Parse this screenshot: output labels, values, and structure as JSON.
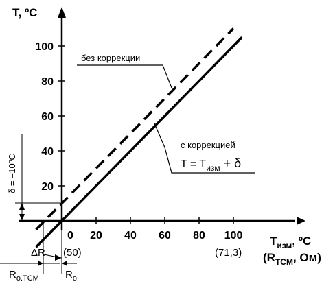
{
  "chart_data": {
    "type": "line",
    "series": [
      {
        "name": "без коррекции",
        "style": "dashed",
        "x": [
          -15,
          100
        ],
        "y": [
          -5,
          110
        ]
      },
      {
        "name": "с коррекцией",
        "style": "solid",
        "x": [
          -15,
          105
        ],
        "y": [
          -15,
          105
        ]
      }
    ],
    "xlim": [
      -20,
      110
    ],
    "ylim": [
      -10,
      120
    ],
    "x_ticks": [
      "0",
      "20",
      "40",
      "60",
      "80",
      "100"
    ],
    "y_ticks": [
      "20",
      "40",
      "60",
      "80",
      "100"
    ],
    "x_ticks_secondary": [
      "(50)",
      "(71,3)"
    ],
    "delta_label": "δ = –10ºC",
    "delta_R_label": "ΔR",
    "R0tcm_label": "R",
    "R0tcm_sub": "o.TCM",
    "R0_label": "R",
    "R0_sub": "o"
  },
  "labels": {
    "y_axis_title": "T, ºC",
    "x_axis_title_main": "T",
    "x_axis_title_sub": "изм",
    "x_axis_title_unit": ", ºC",
    "x_axis_title2_open": "(R",
    "x_axis_title2_sub": "TCM",
    "x_axis_title2_close": ", Ом)",
    "no_correction": "без коррекции",
    "with_correction": "с коррекцией",
    "formula_lhs": "T = T",
    "formula_sub": "изм",
    "formula_rhs": " + δ"
  },
  "colors": {
    "ink": "#000000",
    "background": "#ffffff"
  }
}
